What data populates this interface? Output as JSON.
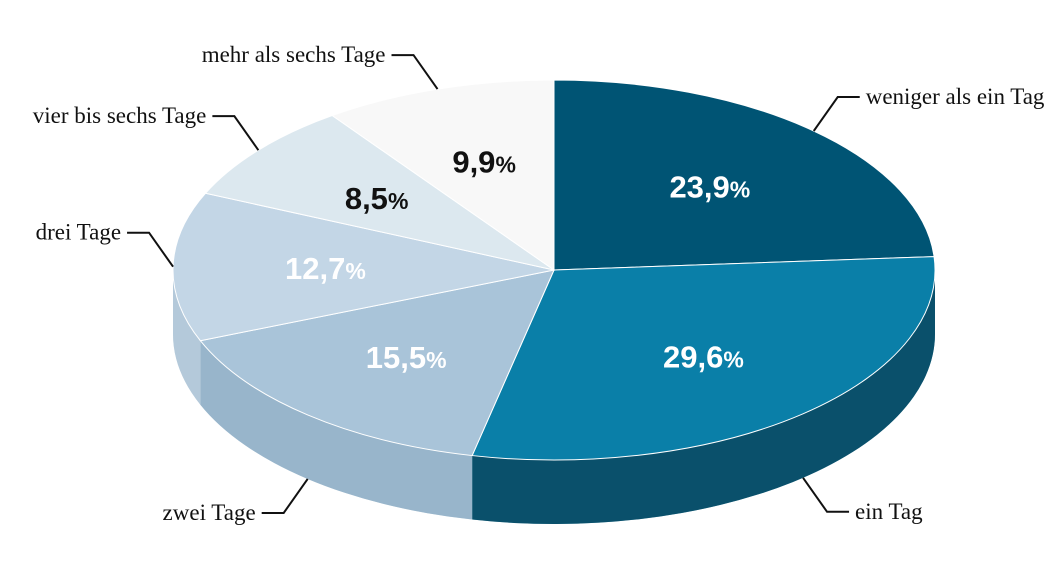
{
  "chart_data": {
    "type": "pie",
    "title": "",
    "style": "3d",
    "categories": [
      "weniger als ein Tag",
      "ein Tag",
      "zwei Tage",
      "drei Tage",
      "vier bis sechs Tage",
      "mehr als sechs Tage"
    ],
    "values": [
      23.9,
      29.6,
      15.5,
      12.7,
      8.5,
      9.9
    ],
    "value_labels": [
      "23,9",
      "29,6",
      "15,5",
      "12,7",
      "8,5",
      "9,9"
    ],
    "unit": "%",
    "colors": [
      "#005474",
      "#0a7fa8",
      "#a9c4d9",
      "#c3d6e6",
      "#dce8ef",
      "#f8f8f8"
    ],
    "side_colors": [
      "#0b2a38",
      "#0b2a38",
      "#8aa9bf",
      "#a8bfd0",
      "#c3d3dd",
      "#e8ebed"
    ],
    "label_text_colors": [
      "#ffffff",
      "#ffffff",
      "#ffffff",
      "#ffffff",
      "#111111",
      "#111111"
    ],
    "start_angle": "12 o'clock",
    "direction": "clockwise",
    "legend": "none"
  }
}
